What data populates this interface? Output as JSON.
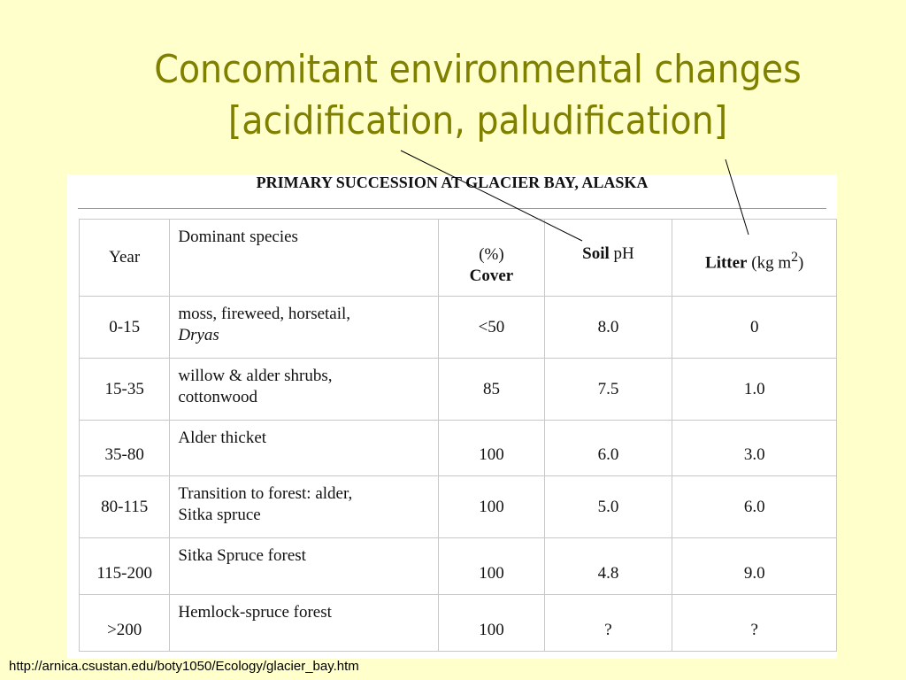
{
  "slide": {
    "title_line1": "Concomitant environmental changes",
    "title_line2": "[acidification, paludification]"
  },
  "table": {
    "heading": "PRIMARY SUCCESSION AT GLACIER BAY, ALASKA",
    "headers": {
      "year": "Year",
      "species": "Dominant species",
      "cover_pct": "(%)",
      "cover": "Cover",
      "soil": "Soil",
      "ph": "pH",
      "litter": "Litter",
      "litter_unit": "(kg m",
      "litter_exp": "2",
      "litter_close": ")"
    },
    "rows": [
      {
        "year": "0-15",
        "species_a": "moss, fireweed, horsetail,",
        "species_b": "Dryas",
        "cover": "<50",
        "ph": "8.0",
        "litter": "0"
      },
      {
        "year": "15-35",
        "species_a": "willow & alder shrubs,",
        "species_b": "cottonwood",
        "cover": "85",
        "ph": "7.5",
        "litter": "1.0"
      },
      {
        "year": "35-80",
        "species_a": "Alder thicket",
        "species_b": "",
        "cover": "100",
        "ph": "6.0",
        "litter": "3.0"
      },
      {
        "year": "80-115",
        "species_a": "Transition to forest: alder,",
        "species_b": "Sitka spruce",
        "cover": "100",
        "ph": "5.0",
        "litter": "6.0"
      },
      {
        "year": "115-200",
        "species_a": "Sitka Spruce forest",
        "species_b": "",
        "cover": "100",
        "ph": "4.8",
        "litter": "9.0"
      },
      {
        "year": ">200",
        "species_a": "Hemlock-spruce forest",
        "species_b": "",
        "cover": "100",
        "ph": "?",
        "litter": "?"
      }
    ]
  },
  "source": {
    "url": "http://arnica.csustan.edu/boty1050/Ecology/glacier_bay.htm"
  }
}
